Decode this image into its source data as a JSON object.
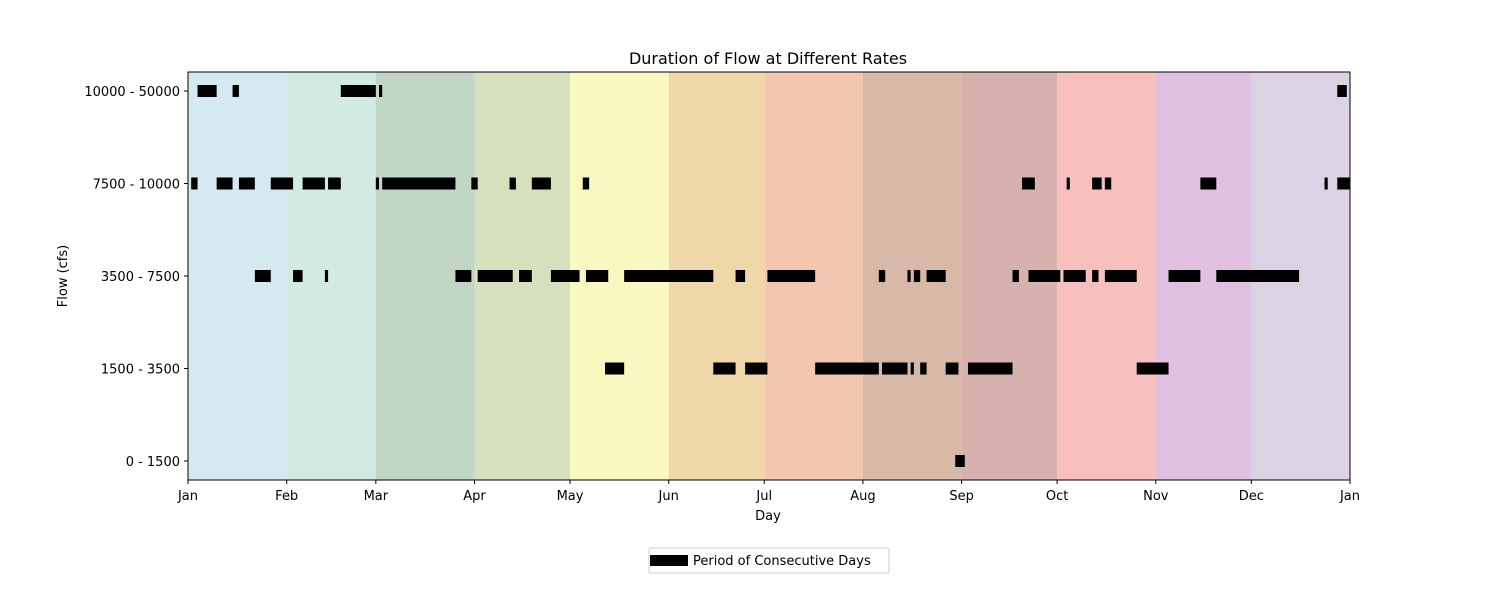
{
  "chart_data": {
    "type": "broken-bar",
    "title": "Duration of Flow at Different Rates",
    "xlabel": "Day",
    "ylabel": "Flow (cfs)",
    "x_unit": "day-of-year",
    "xlim": [
      0,
      365
    ],
    "x_ticks": [
      {
        "label": "Jan",
        "day": 0
      },
      {
        "label": "Feb",
        "day": 31
      },
      {
        "label": "Mar",
        "day": 59
      },
      {
        "label": "Apr",
        "day": 90
      },
      {
        "label": "May",
        "day": 120
      },
      {
        "label": "Jun",
        "day": 151
      },
      {
        "label": "Jul",
        "day": 181
      },
      {
        "label": "Aug",
        "day": 212
      },
      {
        "label": "Sep",
        "day": 243
      },
      {
        "label": "Oct",
        "day": 273
      },
      {
        "label": "Nov",
        "day": 304
      },
      {
        "label": "Dec",
        "day": 334
      },
      {
        "label": "Jan",
        "day": 365
      }
    ],
    "month_bands": [
      {
        "start": 0,
        "end": 31,
        "color": "#d4eaf0"
      },
      {
        "start": 31,
        "end": 59,
        "color": "#d1eae2"
      },
      {
        "start": 59,
        "end": 90,
        "color": "#c1d6c4"
      },
      {
        "start": 90,
        "end": 120,
        "color": "#d7e0bd"
      },
      {
        "start": 120,
        "end": 151,
        "color": "#f9f8c0"
      },
      {
        "start": 151,
        "end": 181,
        "color": "#efd7a9"
      },
      {
        "start": 181,
        "end": 212,
        "color": "#f3c7af"
      },
      {
        "start": 212,
        "end": 243,
        "color": "#d7b8a6"
      },
      {
        "start": 243,
        "end": 273,
        "color": "#d7b1ae"
      },
      {
        "start": 273,
        "end": 304,
        "color": "#f7bfbe"
      },
      {
        "start": 304,
        "end": 334,
        "color": "#e0c1e1"
      },
      {
        "start": 334,
        "end": 365,
        "color": "#dbd3e3"
      }
    ],
    "categories": [
      "0 - 1500",
      "1500 - 3500",
      "3500 - 7500",
      "7500 - 10000",
      "10000 - 50000"
    ],
    "bar_color": "#000000",
    "series": [
      {
        "category": "10000 - 50000",
        "periods": [
          [
            3,
            9
          ],
          [
            14,
            16
          ],
          [
            48,
            59
          ],
          [
            60,
            61
          ],
          [
            361,
            364
          ]
        ]
      },
      {
        "category": "7500 - 10000",
        "periods": [
          [
            1,
            3
          ],
          [
            9,
            14
          ],
          [
            16,
            21
          ],
          [
            26,
            33
          ],
          [
            36,
            43
          ],
          [
            44,
            48
          ],
          [
            59,
            60
          ],
          [
            61,
            84
          ],
          [
            89,
            91
          ],
          [
            101,
            103
          ],
          [
            108,
            114
          ],
          [
            124,
            126
          ],
          [
            262,
            266
          ],
          [
            276,
            277
          ],
          [
            284,
            287
          ],
          [
            288,
            290
          ],
          [
            318,
            323
          ],
          [
            357,
            358
          ],
          [
            361,
            365
          ]
        ]
      },
      {
        "category": "3500 - 7500",
        "periods": [
          [
            21,
            26
          ],
          [
            33,
            36
          ],
          [
            43,
            44
          ],
          [
            84,
            89
          ],
          [
            91,
            102
          ],
          [
            104,
            108
          ],
          [
            114,
            123
          ],
          [
            125,
            132
          ],
          [
            137,
            165
          ],
          [
            172,
            175
          ],
          [
            182,
            197
          ],
          [
            217,
            219
          ],
          [
            226,
            227
          ],
          [
            228,
            230
          ],
          [
            232,
            238
          ],
          [
            259,
            261
          ],
          [
            264,
            274
          ],
          [
            275,
            282
          ],
          [
            284,
            286
          ],
          [
            288,
            298
          ],
          [
            308,
            318
          ],
          [
            323,
            349
          ]
        ]
      },
      {
        "category": "1500 - 3500",
        "periods": [
          [
            131,
            137
          ],
          [
            165,
            172
          ],
          [
            175,
            182
          ],
          [
            197,
            217
          ],
          [
            218,
            226
          ],
          [
            227,
            228
          ],
          [
            230,
            232
          ],
          [
            238,
            242
          ],
          [
            245,
            259
          ],
          [
            298,
            308
          ]
        ]
      },
      {
        "category": "0 - 1500",
        "periods": [
          [
            241,
            244
          ]
        ]
      }
    ],
    "legend": {
      "placement": "bottom-center",
      "entries": [
        "Period of Consecutive Days"
      ]
    },
    "grid": false
  }
}
